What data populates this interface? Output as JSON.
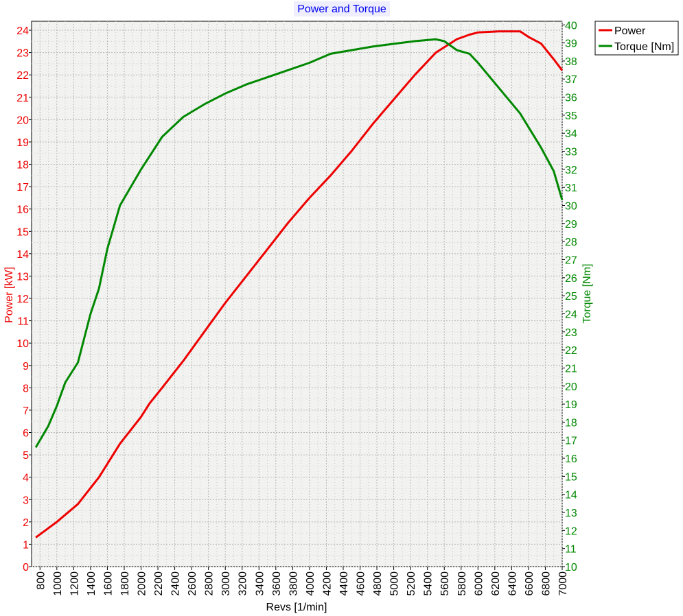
{
  "chart_data": {
    "type": "line",
    "title": "Power and Torque",
    "xlabel": "Revs [1/min]",
    "ylabel_left": "Power [kW]",
    "ylabel_right": "Torque [Nm]",
    "xlim": [
      700,
      7000
    ],
    "ylim_left": [
      0,
      24.4
    ],
    "ylim_right": [
      10,
      40.2
    ],
    "x_ticks": [
      800,
      1000,
      1200,
      1400,
      1600,
      1800,
      2000,
      2200,
      2400,
      2600,
      2800,
      3000,
      3200,
      3400,
      3600,
      3800,
      4000,
      4200,
      4400,
      4600,
      4800,
      5000,
      5200,
      5400,
      5600,
      5800,
      6000,
      6200,
      6400,
      6600,
      6800,
      7000
    ],
    "y_left_ticks": [
      0,
      1,
      2,
      3,
      4,
      5,
      6,
      7,
      8,
      9,
      10,
      11,
      12,
      13,
      14,
      15,
      16,
      17,
      18,
      19,
      20,
      21,
      22,
      23,
      24
    ],
    "y_right_ticks": [
      10,
      11,
      12,
      13,
      14,
      15,
      16,
      17,
      18,
      19,
      20,
      21,
      22,
      23,
      24,
      25,
      26,
      27,
      28,
      29,
      30,
      31,
      32,
      33,
      34,
      35,
      36,
      37,
      38,
      39,
      40
    ],
    "grid": true,
    "legend_position": "top-right-outside",
    "series": [
      {
        "name": "Power",
        "axis": "left",
        "color": "#ee0000",
        "x": [
          750,
          1000,
          1250,
          1500,
          1750,
          2000,
          2100,
          2250,
          2500,
          2750,
          3000,
          3250,
          3500,
          3750,
          4000,
          4250,
          4500,
          4750,
          5000,
          5250,
          5500,
          5750,
          5900,
          6000,
          6250,
          6400,
          6500,
          6600,
          6750,
          6900,
          7000
        ],
        "y": [
          1.3,
          2.0,
          2.8,
          4.0,
          5.5,
          6.7,
          7.3,
          8.0,
          9.2,
          10.5,
          11.8,
          13.0,
          14.2,
          15.4,
          16.5,
          17.5,
          18.6,
          19.8,
          20.9,
          22.0,
          23.0,
          23.6,
          23.8,
          23.9,
          23.95,
          23.95,
          23.95,
          23.7,
          23.4,
          22.7,
          22.2
        ]
      },
      {
        "name": "Torque [Nm]",
        "axis": "right",
        "color": "#008800",
        "x": [
          750,
          900,
          1000,
          1100,
          1250,
          1400,
          1500,
          1600,
          1750,
          2000,
          2250,
          2500,
          2750,
          3000,
          3250,
          3500,
          3750,
          4000,
          4250,
          4500,
          4750,
          5000,
          5250,
          5500,
          5600,
          5750,
          5900,
          6000,
          6250,
          6500,
          6750,
          6900,
          7000
        ],
        "y": [
          16.6,
          17.8,
          18.9,
          20.2,
          21.3,
          24.0,
          25.4,
          27.6,
          30.0,
          32.0,
          33.8,
          34.9,
          35.6,
          36.2,
          36.7,
          37.1,
          37.5,
          37.9,
          38.4,
          38.6,
          38.8,
          38.95,
          39.1,
          39.2,
          39.1,
          38.6,
          38.4,
          37.9,
          36.5,
          35.1,
          33.2,
          31.9,
          30.3
        ]
      }
    ]
  }
}
